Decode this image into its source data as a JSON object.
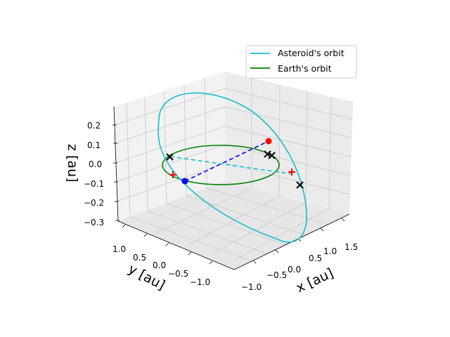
{
  "chart_data": {
    "type": "line",
    "subtype": "3d-orbit-plot",
    "title": "",
    "xlabel": "x [au]",
    "ylabel": "y [au]",
    "zlabel": "z [au]",
    "x_ticks": [
      "−1.0",
      "−0.5",
      "0.0",
      "0.5",
      "1.0",
      "1.5"
    ],
    "y_ticks": [
      "1.0",
      "0.5",
      "0.0",
      "−0.5",
      "−1.0"
    ],
    "z_ticks": [
      "0.2",
      "0.1",
      "0.0",
      "−0.1",
      "−0.2",
      "−0.3"
    ],
    "xlim": [
      -1.2,
      1.7
    ],
    "ylim": [
      -1.3,
      1.3
    ],
    "zlim": [
      -0.33,
      0.27
    ],
    "grid": true,
    "legend_position": "top-right",
    "series": [
      {
        "name": "Asteroid's orbit",
        "color": "#17becf"
      },
      {
        "name": "Earth's orbit",
        "color": "#008000"
      }
    ],
    "markers": {
      "red_dot": {
        "x": 0.9,
        "y": -0.6,
        "z": 0.1
      },
      "blue_dot": {
        "x": -0.9,
        "y": 0.4,
        "z": -0.1
      },
      "red_plus": [
        {
          "x": -1.0,
          "y": 0.2,
          "z": -0.05
        },
        {
          "x": 1.05,
          "y": -0.1,
          "z": -0.05
        }
      ],
      "black_x": [
        {
          "x": -0.9,
          "y": -0.2,
          "z": 0.05
        },
        {
          "x": 0.85,
          "y": -0.75,
          "z": 0.05
        },
        {
          "x": 0.9,
          "y": -0.7,
          "z": 0.05
        },
        {
          "x": 1.1,
          "y": -0.3,
          "z": -0.15
        }
      ]
    }
  }
}
